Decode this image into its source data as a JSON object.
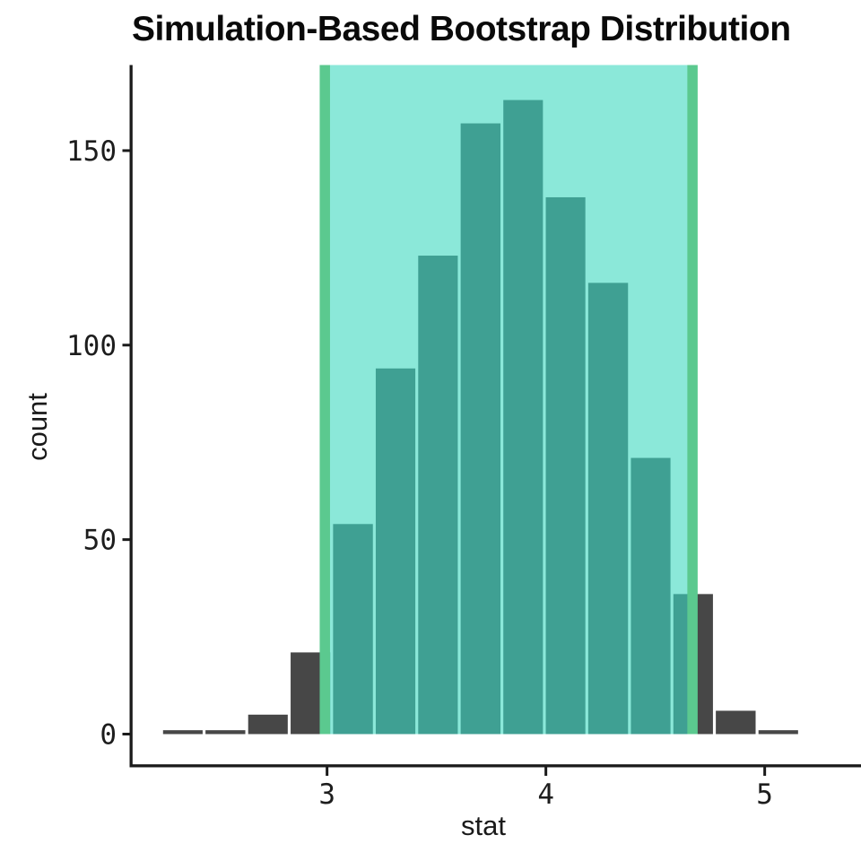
{
  "chart_data": {
    "type": "bar",
    "subtype": "histogram",
    "title": "Simulation-Based Bootstrap Distribution",
    "xlabel": "stat",
    "ylabel": "count",
    "x_ticks": [
      3,
      4,
      5
    ],
    "y_ticks": [
      0,
      50,
      100,
      150
    ],
    "xlim": [
      2.11,
      5.44
    ],
    "ylim": [
      0,
      172
    ],
    "grid": false,
    "legend": "none",
    "bin_edges": [
      2.244,
      2.438,
      2.633,
      2.827,
      3.021,
      3.216,
      3.41,
      3.604,
      3.799,
      3.993,
      4.187,
      4.382,
      4.576,
      4.77,
      4.965,
      5.159
    ],
    "counts": [
      1,
      1,
      5,
      21,
      54,
      94,
      123,
      157,
      163,
      138,
      116,
      71,
      36,
      6,
      1
    ],
    "confidence_interval": {
      "lower": 2.99,
      "upper": 4.67
    },
    "colors": {
      "bar": "#474747",
      "bar_in_interval": "#3FA093",
      "interval_fill": "#8BE8D9",
      "interval_edge": "#5BC98F",
      "axis": "#1A1A1A",
      "text": "#1D1D1D"
    }
  }
}
